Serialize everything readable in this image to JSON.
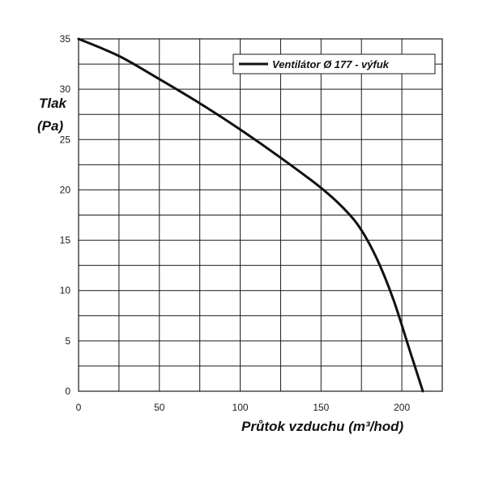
{
  "chart_data": {
    "type": "line",
    "xlabel": "Průtok vzduchu (m³/hod)",
    "ylabel_line1": "Tlak",
    "ylabel_line2": "(Pa)",
    "xlim": [
      0,
      225
    ],
    "ylim": [
      0,
      35
    ],
    "x_ticks": [
      0,
      50,
      100,
      150,
      200
    ],
    "y_ticks": [
      0,
      5,
      10,
      15,
      20,
      25,
      30,
      35
    ],
    "grid": true,
    "grid_x_step": 25,
    "grid_y_step": 2.5,
    "legend_position": "top-right",
    "series": [
      {
        "name": "Ventilátor Ø 177 - výfuk",
        "color": "#111111",
        "x": [
          0,
          25,
          50,
          75,
          100,
          125,
          150,
          165,
          175,
          185,
          195,
          205,
          213
        ],
        "y": [
          35,
          33.3,
          31,
          28.6,
          26,
          23.2,
          20.2,
          18,
          16,
          13,
          9,
          4,
          0
        ]
      }
    ]
  }
}
